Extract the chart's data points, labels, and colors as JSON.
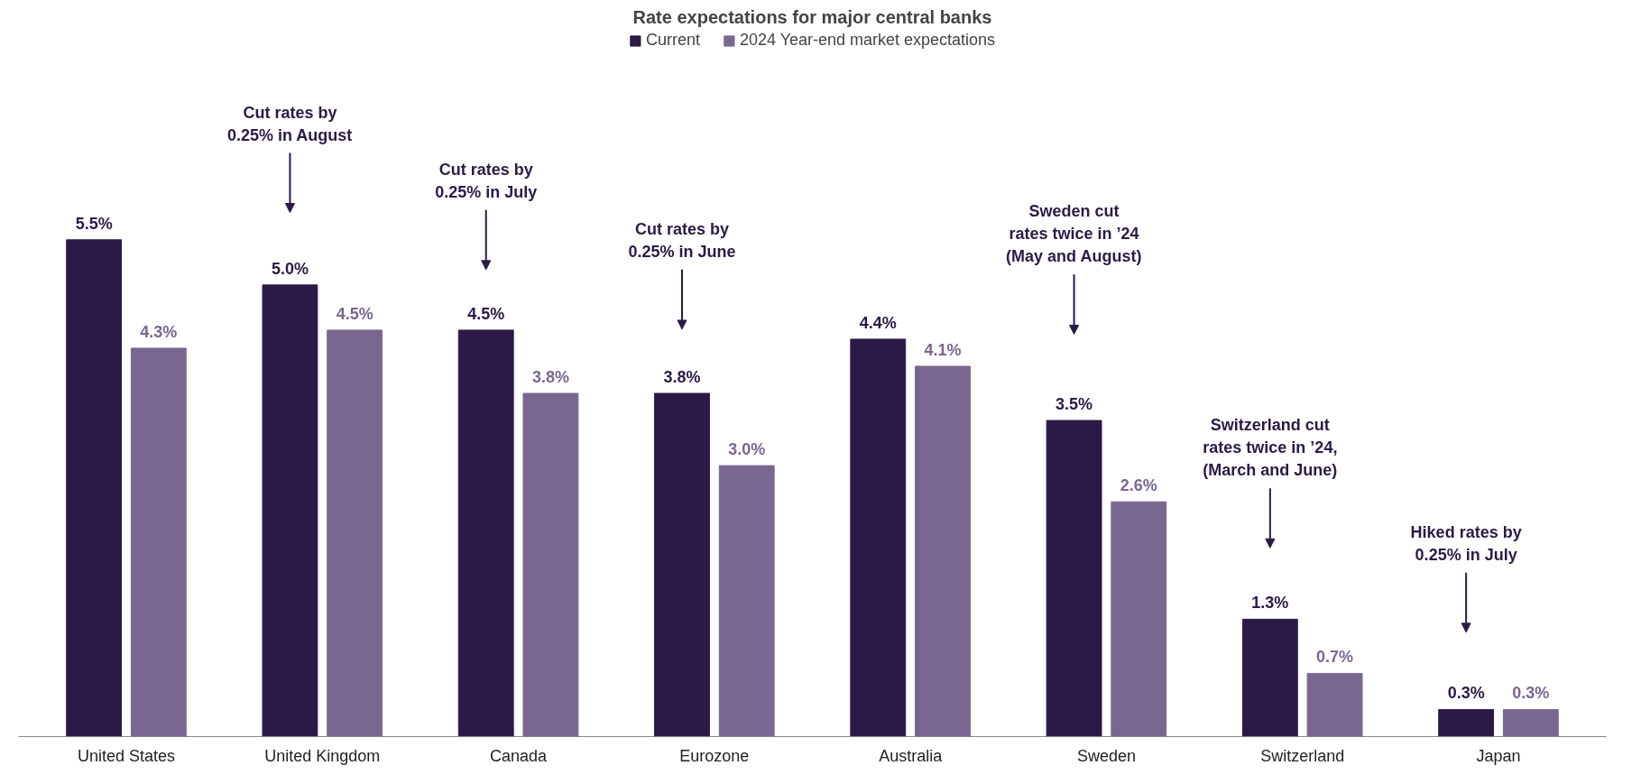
{
  "chart_data": {
    "type": "bar",
    "title": "Rate expectations for major central banks",
    "categories": [
      "United States",
      "United Kingdom",
      "Canada",
      "Eurozone",
      "Australia",
      "Sweden",
      "Switzerland",
      "Japan"
    ],
    "series": [
      {
        "name": "Current",
        "color": "#2b1a45",
        "values": [
          5.5,
          5.0,
          4.5,
          3.8,
          4.4,
          3.5,
          1.3,
          0.3
        ],
        "value_labels": [
          "5.5%",
          "5.0%",
          "4.5%",
          "3.8%",
          "4.4%",
          "3.5%",
          "1.3%",
          "0.3%"
        ]
      },
      {
        "name": "2024 Year-end market expectations",
        "color": "#7a6790",
        "values": [
          4.3,
          4.5,
          3.8,
          3.0,
          4.1,
          2.6,
          0.7,
          0.3
        ],
        "value_labels": [
          "4.3%",
          "4.5%",
          "3.8%",
          "3.0%",
          "4.1%",
          "2.6%",
          "0.7%",
          "0.3%"
        ]
      }
    ],
    "annotations": [
      "Cut rates by\n0.25% in August",
      "Cut rates by\n0.25% in July",
      "Cut rates by\n0.25% in June",
      "Sweden cut\nrates twice in ’24\n(May and August)",
      "Switzerland cut\nrates twice in ’24,\n(March and June)",
      "Hiked rates by\n0.25% in July"
    ],
    "legend": "top",
    "grid": false
  }
}
